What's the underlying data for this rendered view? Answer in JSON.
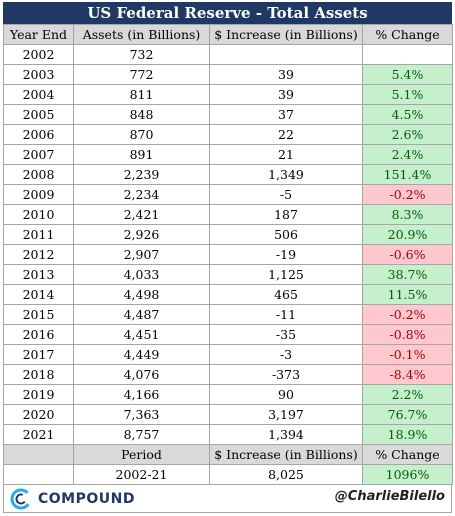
{
  "title": "US Federal Reserve - Total Assets",
  "headers": [
    "Year End",
    "Assets (in Billions)",
    "$ Increase (in Billions)",
    "% Change"
  ],
  "rows": [
    {
      "year": "2002",
      "assets": "732",
      "increase": "",
      "change": "",
      "sign": "none"
    },
    {
      "year": "2003",
      "assets": "772",
      "increase": "39",
      "change": "5.4%",
      "sign": "pos"
    },
    {
      "year": "2004",
      "assets": "811",
      "increase": "39",
      "change": "5.1%",
      "sign": "pos"
    },
    {
      "year": "2005",
      "assets": "848",
      "increase": "37",
      "change": "4.5%",
      "sign": "pos"
    },
    {
      "year": "2006",
      "assets": "870",
      "increase": "22",
      "change": "2.6%",
      "sign": "pos"
    },
    {
      "year": "2007",
      "assets": "891",
      "increase": "21",
      "change": "2.4%",
      "sign": "pos"
    },
    {
      "year": "2008",
      "assets": "2,239",
      "increase": "1,349",
      "change": "151.4%",
      "sign": "pos"
    },
    {
      "year": "2009",
      "assets": "2,234",
      "increase": "-5",
      "change": "-0.2%",
      "sign": "neg"
    },
    {
      "year": "2010",
      "assets": "2,421",
      "increase": "187",
      "change": "8.3%",
      "sign": "pos"
    },
    {
      "year": "2011",
      "assets": "2,926",
      "increase": "506",
      "change": "20.9%",
      "sign": "pos"
    },
    {
      "year": "2012",
      "assets": "2,907",
      "increase": "-19",
      "change": "-0.6%",
      "sign": "neg"
    },
    {
      "year": "2013",
      "assets": "4,033",
      "increase": "1,125",
      "change": "38.7%",
      "sign": "pos"
    },
    {
      "year": "2014",
      "assets": "4,498",
      "increase": "465",
      "change": "11.5%",
      "sign": "pos"
    },
    {
      "year": "2015",
      "assets": "4,487",
      "increase": "-11",
      "change": "-0.2%",
      "sign": "neg"
    },
    {
      "year": "2016",
      "assets": "4,451",
      "increase": "-35",
      "change": "-0.8%",
      "sign": "neg"
    },
    {
      "year": "2017",
      "assets": "4,449",
      "increase": "-3",
      "change": "-0.1%",
      "sign": "neg"
    },
    {
      "year": "2018",
      "assets": "4,076",
      "increase": "-373",
      "change": "-8.4%",
      "sign": "neg"
    },
    {
      "year": "2019",
      "assets": "4,166",
      "increase": "90",
      "change": "2.2%",
      "sign": "pos"
    },
    {
      "year": "2020",
      "assets": "7,363",
      "increase": "3,197",
      "change": "76.7%",
      "sign": "pos"
    },
    {
      "year": "2021",
      "assets": "8,757",
      "increase": "1,394",
      "change": "18.9%",
      "sign": "pos"
    }
  ],
  "summary": {
    "headers": [
      "Period",
      "$ Increase (in Billions)",
      "% Change"
    ],
    "period": "2002-21",
    "increase": "8,025",
    "change": "1096%"
  },
  "footer": {
    "logo_text": "COMPOUND",
    "logo_icon": "compound-c-icon",
    "handle": "@CharlieBilello"
  },
  "colors": {
    "title_bg": "#1f3864",
    "positive_bg": "#c6efce",
    "positive_text": "#006100",
    "negative_bg": "#ffc7ce",
    "negative_text": "#9c0006",
    "header_bg": "#d9d9d9"
  },
  "chart_data": {
    "type": "table",
    "title": "US Federal Reserve - Total Assets",
    "columns": [
      "Year End",
      "Assets (in Billions)",
      "$ Increase (in Billions)",
      "% Change"
    ],
    "x": [
      2002,
      2003,
      2004,
      2005,
      2006,
      2007,
      2008,
      2009,
      2010,
      2011,
      2012,
      2013,
      2014,
      2015,
      2016,
      2017,
      2018,
      2019,
      2020,
      2021
    ],
    "series": [
      {
        "name": "Assets (in Billions)",
        "values": [
          732,
          772,
          811,
          848,
          870,
          891,
          2239,
          2234,
          2421,
          2926,
          2907,
          4033,
          4498,
          4487,
          4451,
          4449,
          4076,
          4166,
          7363,
          8757
        ]
      },
      {
        "name": "$ Increase (in Billions)",
        "values": [
          null,
          39,
          39,
          37,
          22,
          21,
          1349,
          -5,
          187,
          506,
          -19,
          1125,
          465,
          -11,
          -35,
          -3,
          -373,
          90,
          3197,
          1394
        ]
      },
      {
        "name": "% Change",
        "values": [
          null,
          5.4,
          5.1,
          4.5,
          2.6,
          2.4,
          151.4,
          -0.2,
          8.3,
          20.9,
          -0.6,
          38.7,
          11.5,
          -0.2,
          -0.8,
          -0.1,
          -8.4,
          2.2,
          76.7,
          18.9
        ]
      }
    ],
    "summary": {
      "period": "2002-21",
      "increase": 8025,
      "change_pct": 1096
    }
  }
}
